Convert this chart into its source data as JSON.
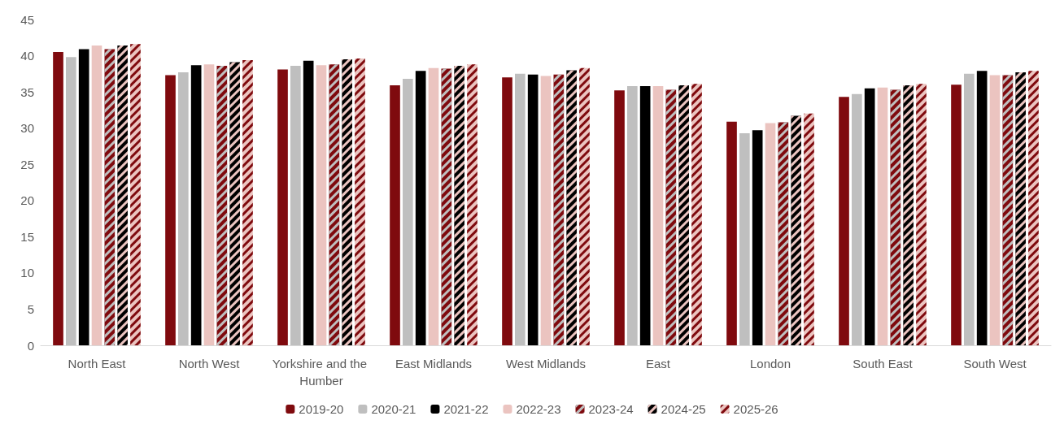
{
  "chart_data": {
    "type": "bar",
    "categories": [
      "North East",
      "North West",
      "Yorkshire and the Humber",
      "East Midlands",
      "West Midlands",
      "East",
      "London",
      "South East",
      "South West"
    ],
    "series": [
      {
        "name": "2019-20",
        "color": "#7f0a0e",
        "values": [
          40.5,
          37.3,
          38.1,
          35.9,
          37.0,
          35.2,
          30.9,
          34.3,
          36.0
        ]
      },
      {
        "name": "2020-21",
        "color": "#bfbfbf",
        "values": [
          39.8,
          37.7,
          38.6,
          36.8,
          37.5,
          35.8,
          29.3,
          34.7,
          37.5
        ]
      },
      {
        "name": "2021-22",
        "color": "#000000",
        "values": [
          40.9,
          38.7,
          39.3,
          37.9,
          37.4,
          35.8,
          29.7,
          35.5,
          37.9
        ]
      },
      {
        "name": "2022-23",
        "color": "#ebc4c0",
        "values": [
          41.4,
          38.8,
          38.7,
          38.3,
          37.2,
          35.8,
          30.7,
          35.6,
          37.3
        ]
      },
      {
        "name": "2023-24",
        "color": "#7f0a0e",
        "values": [
          40.9,
          38.6,
          38.8,
          38.2,
          37.4,
          35.3,
          30.8,
          35.3,
          37.3
        ]
      },
      {
        "name": "2024-25",
        "color": "#000000",
        "values": [
          41.4,
          39.1,
          39.5,
          38.6,
          38.0,
          35.9,
          31.7,
          35.9,
          37.7
        ]
      },
      {
        "name": "2025-26",
        "color": "#ebc4c0",
        "values": [
          41.6,
          39.4,
          39.6,
          38.8,
          38.3,
          36.1,
          32.0,
          36.1,
          37.9
        ]
      }
    ],
    "ylim": [
      0,
      45
    ],
    "yticks": [
      0,
      5,
      10,
      15,
      20,
      25,
      30,
      35,
      40,
      45
    ],
    "grid": false,
    "legend": "bottom"
  }
}
